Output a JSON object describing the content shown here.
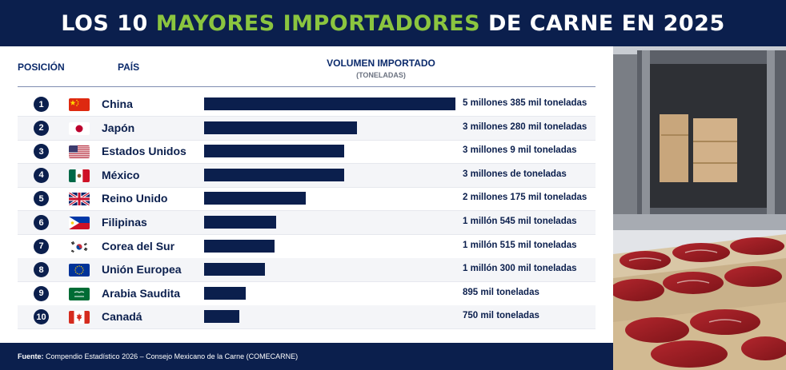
{
  "title": {
    "part1": "LOS 10",
    "accent": "MAYORES IMPORTADORES",
    "part2": "DE CARNE EN 2025"
  },
  "headers": {
    "position": "POSICIÓN",
    "country": "PAÍS",
    "volume": "VOLUMEN IMPORTADO",
    "unit": "(TONELADAS)"
  },
  "colors": {
    "navy": "#0b1f4d",
    "accent_green": "#8bc53f"
  },
  "chart_data": {
    "type": "bar",
    "orientation": "horizontal",
    "categories": [
      "China",
      "Japón",
      "Estados Unidos",
      "México",
      "Reino Unido",
      "Filipinas",
      "Corea del Sur",
      "Unión Europea",
      "Arabia Saudita",
      "Canadá"
    ],
    "values": [
      5385000,
      3280000,
      3009000,
      3000000,
      2175000,
      1545000,
      1515000,
      1300000,
      895000,
      750000
    ],
    "value_labels": [
      "5 millones 385 mil toneladas",
      "3 millones 280 mil toneladas",
      "3 millones 9 mil toneladas",
      "3 millones de toneladas",
      "2 millones 175 mil toneladas",
      "1 millón 545 mil toneladas",
      "1 millón 515 mil toneladas",
      "1 millón 300 mil toneladas",
      "895 mil toneladas",
      "750 mil toneladas"
    ],
    "ranks": [
      "1",
      "2",
      "3",
      "4",
      "5",
      "6",
      "7",
      "8",
      "9",
      "10"
    ],
    "flags": [
      "china-flag",
      "japan-flag",
      "usa-flag",
      "mexico-flag",
      "uk-flag",
      "philippines-flag",
      "south-korea-flag",
      "eu-flag",
      "saudi-arabia-flag",
      "canada-flag"
    ],
    "xlim": [
      0,
      5385000
    ],
    "grid": false,
    "legend": "none"
  },
  "footer": {
    "label": "Fuente:",
    "text": "Compendio Estadístico 2026 – Consejo Mexicano de la Carne (COMECARNE)"
  },
  "photo": {
    "icon": "meat-container-photo"
  }
}
